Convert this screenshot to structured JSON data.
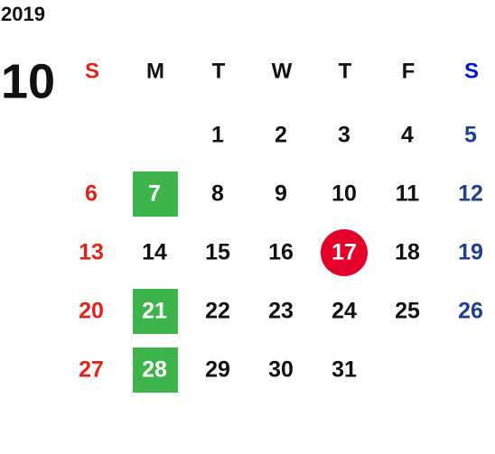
{
  "calendar": {
    "year": "2019",
    "month": "10",
    "weekdays": [
      "S",
      "M",
      "T",
      "W",
      "T",
      "F",
      "S"
    ],
    "weeks": [
      [
        null,
        null,
        1,
        2,
        3,
        4,
        5
      ],
      [
        6,
        7,
        8,
        9,
        10,
        11,
        12
      ],
      [
        13,
        14,
        15,
        16,
        17,
        18,
        19
      ],
      [
        20,
        21,
        22,
        23,
        24,
        25,
        26
      ],
      [
        27,
        28,
        29,
        30,
        31,
        null,
        null
      ]
    ],
    "green_square_days": [
      7,
      21,
      28
    ],
    "red_circle_days": [
      17
    ]
  }
}
